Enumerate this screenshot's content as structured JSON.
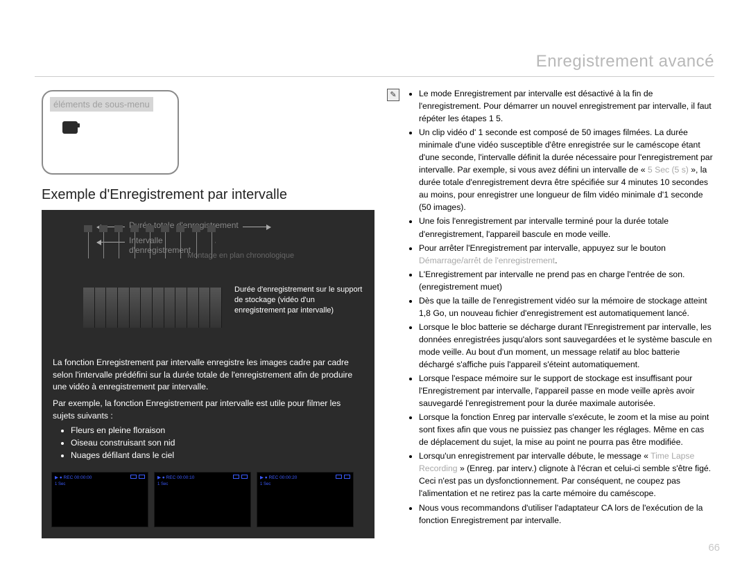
{
  "header": {
    "section_title": "Enregistrement avancé"
  },
  "left": {
    "submenu_label": "éléments de sous-menu",
    "section_heading": "Exemple d'Enregistrement par intervalle",
    "diagram": {
      "total_label": "Durée totale d'enregistrement",
      "interval_label": "Intervalle d'enregistrement",
      "montage_label": "Montage en plan chronologique",
      "caption": "Durée d'enregistrement sur le support de stockage (vidéo d'un enregistrement par intervalle)",
      "bar_count": 9,
      "colors": {
        "panel_bg": "#2b2b2b",
        "bar_fill": "#3a3a3a",
        "bar_border": "#555555",
        "guide": "#888888",
        "muted_text": "#888888"
      }
    },
    "body_para1": "La fonction Enregistrement par intervalle enregistre les images cadre par cadre selon l'intervalle prédéfini sur la durée totale de l'enregistrement afin de produire une vidéo à enregistrement par intervalle.",
    "body_para2": "Par exemple, la fonction Enregistrement par intervalle est utile pour filmer les sujets suivants :",
    "body_bullets": [
      "Fleurs en pleine floraison",
      "Oiseau construisant son nid",
      "Nuages défilant dans le ciel"
    ],
    "thumbnails": [
      {
        "timer": "00:00:00",
        "mode": "1 Sec"
      },
      {
        "timer": "00:00:10",
        "mode": "1 Sec"
      },
      {
        "timer": "00:00:20",
        "mode": "1 Sec"
      }
    ]
  },
  "right": {
    "bullets": [
      {
        "pre": "Le mode Enregistrement par intervalle est désactivé à la fin de l'enregistrement. Pour démarrer un nouvel enregistrement par intervalle, il faut répéter les étapes 1 5."
      },
      {
        "pre": "Un clip vidéo d' 1 seconde est composé de 50 images filmées. La durée minimale d'une vidéo susceptible d'être enregistrée sur le caméscope étant d'une seconde, l'intervalle définit la durée nécessaire pour l'enregistrement par intervalle. Par exemple, si vous avez défini un intervalle de « ",
        "muted": "5 Sec (5 s)",
        "post": " », la durée totale d'enregistrement devra être spécifiée sur 4 minutes 10 secondes au moins, pour enregistrer une longueur de film vidéo minimale d'1 seconde (50 images)."
      },
      {
        "pre": "Une fois l'enregistrement par intervalle terminé pour la durée totale d'enregistrement, l'appareil bascule en mode veille."
      },
      {
        "pre": "Pour arrêter l'Enregistrement par intervalle, appuyez sur le bouton ",
        "muted": "Démarrage/arrêt de l'enregistrement",
        "post": "."
      },
      {
        "pre": "L'Enregistrement par intervalle ne prend pas en charge l'entrée de son. (enregistrement muet)"
      },
      {
        "pre": "Dès que la taille de l'enregistrement vidéo sur la mémoire de stockage atteint 1,8 Go, un nouveau fichier d'enregistrement est automatiquement lancé."
      },
      {
        "pre": "Lorsque le bloc batterie se décharge durant l'Enregistrement par intervalle, les données enregistrées jusqu'alors sont sauvegardées et le système bascule en mode veille. Au bout d'un moment, un message relatif au bloc batterie déchargé s'affiche puis l'appareil s'éteint automatiquement."
      },
      {
        "pre": "Lorsque l'espace mémoire sur le support de stockage est insuffisant pour l'Enregistrement par intervalle, l'appareil passe en mode veille après avoir sauvegardé l'enregistrement pour la durée maximale autorisée."
      },
      {
        "pre": "Lorsque la fonction Enreg par intervalle s'exécute, le zoom et la mise au point sont fixes afin que vous ne puissiez pas changer les réglages. Même en cas de déplacement du sujet, la mise au point ne pourra pas être modifiée."
      },
      {
        "pre": "Lorsqu'un enregistrement par intervalle débute, le message « ",
        "muted": "Time Lapse Recording",
        "post": " » (Enreg. par interv.) clignote à l'écran et celui-ci semble s'être figé. Ceci n'est pas un dysfonctionnement. Par conséquent, ne coupez pas l'alimentation et ne retirez pas la carte mémoire du caméscope."
      },
      {
        "pre": "Nous vous recommandons d'utiliser l'adaptateur CA lors de l'exécution de la fonction Enregistrement par intervalle."
      }
    ]
  },
  "page_number": "66"
}
